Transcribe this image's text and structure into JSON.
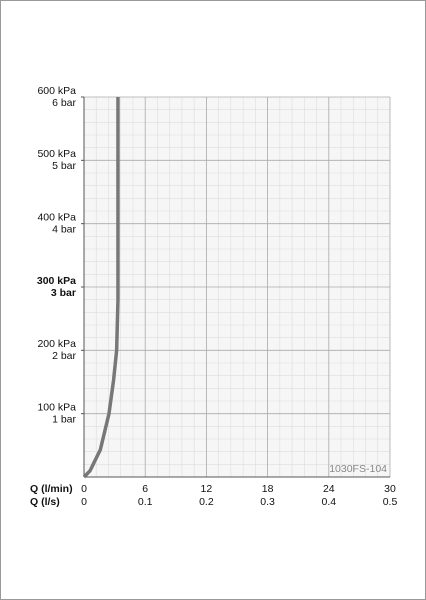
{
  "chart_data": {
    "type": "line",
    "xlabel": "Q (l/min)",
    "x2label": "Q (l/s)",
    "x": [
      0,
      0.6,
      1.6,
      2.45,
      2.9,
      3.2,
      3.33,
      3.33
    ],
    "series": [
      {
        "color": "#777777",
        "values": [
          0,
          10,
          43,
          100,
          153,
          200,
          280,
          600
        ]
      }
    ],
    "xlim": [
      0,
      30
    ],
    "xticks": [
      0,
      6,
      12,
      18,
      24,
      30
    ],
    "x2lim": [
      0,
      0.5
    ],
    "x2ticks": [
      0,
      0.1,
      0.2,
      0.3,
      0.4,
      0.5
    ],
    "ylim": [
      0,
      600
    ],
    "yticks": [
      {
        "value": 100,
        "label": "100 kPa"
      },
      {
        "value": 200,
        "label": "200 kPa"
      },
      {
        "value": 300,
        "label": "300 kPa"
      },
      {
        "value": 400,
        "label": "400 kPa"
      },
      {
        "value": 500,
        "label": "500 kPa"
      },
      {
        "value": 600,
        "label": "600 kPa"
      }
    ],
    "y2lim": [
      0,
      6
    ],
    "y2ticks": [
      {
        "value": 1,
        "label": "1 bar"
      },
      {
        "value": 2,
        "label": "2 bar"
      },
      {
        "value": 3,
        "label": "3 bar"
      },
      {
        "value": 4,
        "label": "4 bar"
      },
      {
        "value": 5,
        "label": "5 bar"
      },
      {
        "value": 6,
        "label": "6 bar"
      }
    ],
    "highlight_yticks": [
      300
    ],
    "grid": true,
    "minor_grid": 5,
    "annotation": "1030FS-104"
  }
}
